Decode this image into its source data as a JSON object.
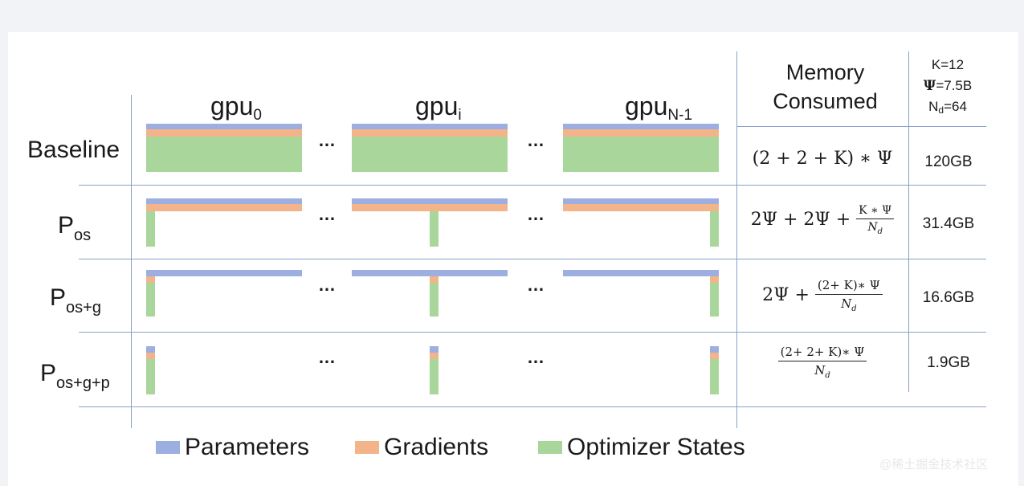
{
  "gpus": {
    "gpu0": {
      "base": "gpu",
      "sub": "0"
    },
    "gpui": {
      "base": "gpu",
      "sub": "i"
    },
    "gpuN": {
      "base": "gpu",
      "sub": "N-1"
    },
    "ellipsis": "…"
  },
  "header": {
    "memory_line1": "Memory",
    "memory_line2": "Consumed",
    "const_k": "K=12",
    "const_psi_symbol": "Ψ",
    "const_psi_value": "=7.5B",
    "const_nd_base": "N",
    "const_nd_sub": "d",
    "const_nd_value": "=64"
  },
  "rows": [
    {
      "label": "Baseline",
      "label_sub": "",
      "value": "120GB"
    },
    {
      "label": "P",
      "label_sub": "os",
      "value": "31.4GB"
    },
    {
      "label": "P",
      "label_sub": "os+g",
      "value": "16.6GB"
    },
    {
      "label": "P",
      "label_sub": "os+g+p",
      "value": "1.9GB"
    }
  ],
  "formulas": {
    "baseline": "(2 + 2 + K) ∗ Ψ",
    "pos_prefix": "2Ψ + 2Ψ + ",
    "pos_num": "K ∗ Ψ",
    "posg_prefix": "2Ψ + ",
    "posg_num": "(2+ K)∗ Ψ",
    "posgp_num": "(2+ 2+ K)∗ Ψ",
    "den_base": "N",
    "den_sub": "d"
  },
  "legend": [
    {
      "label": "Parameters",
      "color": "#9daee0"
    },
    {
      "label": "Gradients",
      "color": "#f4b48a"
    },
    {
      "label": "Optimizer States",
      "color": "#a9d69a"
    }
  ],
  "watermark": "@稀土掘金技术社区"
}
